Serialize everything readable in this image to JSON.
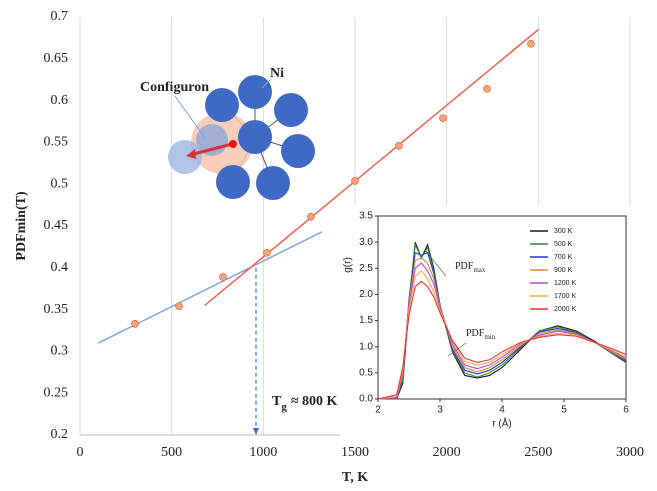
{
  "chart_data": [
    {
      "type": "scatter",
      "x_label": "T, K",
      "y_label": "PDFmin(T)",
      "x": [
        300,
        540,
        780,
        1020,
        1260,
        1500,
        1740,
        1980,
        2220,
        2460
      ],
      "series": [
        {
          "color": "#f4a37a",
          "values": [
            0.333,
            0.354,
            0.389,
            0.418,
            0.461,
            0.504,
            0.546,
            0.579,
            0.614,
            0.668
          ]
        }
      ],
      "lines": [
        {
          "color": "#7ea6d9",
          "x": [
            100,
            1320
          ],
          "values": [
            0.31,
            0.443
          ]
        },
        {
          "color": "#ef5f4b",
          "x": [
            680,
            2500
          ],
          "values": [
            0.355,
            0.685
          ]
        }
      ],
      "vline": {
        "color": "#3a6fd0",
        "x": 960,
        "y": [
          0.4,
          0.2
        ]
      },
      "annotation": {
        "text": "T",
        "sub": "g",
        "rest": "≈ 800 K"
      },
      "xlim": [
        0,
        3000
      ],
      "xticks": [
        0,
        500,
        1000,
        1500,
        2000,
        2500,
        3000
      ],
      "ylim": [
        0.2,
        0.7
      ],
      "yticks": [
        0.2,
        0.25,
        0.3,
        0.35,
        0.4,
        0.45,
        0.5,
        0.55,
        0.6,
        0.65,
        0.7
      ],
      "grid": "x"
    },
    {
      "type": "line",
      "x_label": "r (Å)",
      "y_label": "g(r)",
      "legend": "upper right",
      "x": [
        2.0,
        2.3,
        2.4,
        2.5,
        2.6,
        2.7,
        2.8,
        2.9,
        3.0,
        3.2,
        3.4,
        3.6,
        3.8,
        4.0,
        4.3,
        4.6,
        4.9,
        5.2,
        5.5,
        5.8,
        6.0
      ],
      "series": [
        {
          "name": "300 K",
          "color": "#1a1a1a",
          "values": [
            0,
            0,
            0.3,
            1.8,
            3.0,
            2.7,
            2.95,
            2.5,
            1.8,
            0.9,
            0.45,
            0.4,
            0.45,
            0.6,
            0.95,
            1.3,
            1.4,
            1.3,
            1.1,
            0.85,
            0.7
          ]
        },
        {
          "name": "500 K",
          "color": "#2e8b3e",
          "values": [
            0,
            0,
            0.35,
            1.9,
            2.95,
            2.7,
            2.9,
            2.45,
            1.8,
            0.92,
            0.5,
            0.42,
            0.5,
            0.65,
            0.98,
            1.3,
            1.38,
            1.28,
            1.08,
            0.85,
            0.72
          ]
        },
        {
          "name": "700 K",
          "color": "#2a35c8",
          "values": [
            0,
            0,
            0.4,
            1.9,
            2.8,
            2.75,
            2.8,
            2.4,
            1.8,
            0.95,
            0.55,
            0.48,
            0.55,
            0.7,
            1.0,
            1.28,
            1.35,
            1.27,
            1.08,
            0.87,
            0.74
          ]
        },
        {
          "name": "900 K",
          "color": "#e0893a",
          "values": [
            0,
            0.02,
            0.45,
            1.85,
            2.65,
            2.7,
            2.6,
            2.3,
            1.78,
            1.0,
            0.6,
            0.52,
            0.6,
            0.75,
            1.02,
            1.25,
            1.32,
            1.25,
            1.08,
            0.88,
            0.76
          ]
        },
        {
          "name": "1200 K",
          "color": "#b04fd0",
          "values": [
            0,
            0.03,
            0.5,
            1.8,
            2.5,
            2.6,
            2.45,
            2.2,
            1.75,
            1.05,
            0.65,
            0.58,
            0.65,
            0.8,
            1.05,
            1.22,
            1.3,
            1.24,
            1.08,
            0.9,
            0.78
          ]
        },
        {
          "name": "1700 K",
          "color": "#f4a84a",
          "values": [
            0,
            0.05,
            0.55,
            1.7,
            2.35,
            2.45,
            2.3,
            2.05,
            1.7,
            1.1,
            0.72,
            0.65,
            0.7,
            0.85,
            1.06,
            1.2,
            1.26,
            1.22,
            1.08,
            0.92,
            0.8
          ]
        },
        {
          "name": "2000 K",
          "color": "#e8332a",
          "values": [
            0,
            0.08,
            0.6,
            1.6,
            2.15,
            2.25,
            2.15,
            1.95,
            1.65,
            1.12,
            0.78,
            0.7,
            0.75,
            0.9,
            1.08,
            1.18,
            1.23,
            1.2,
            1.08,
            0.95,
            0.85
          ]
        }
      ],
      "annotations": [
        {
          "text": "PDF",
          "sub": "max"
        },
        {
          "text": "PDF",
          "sub": "min"
        }
      ],
      "xlim": [
        2,
        6
      ],
      "xticks": [
        2,
        3,
        4,
        5,
        6
      ],
      "ylim": [
        0,
        3.5
      ],
      "yticks": [
        {
          "value": 0,
          "label": "0.0"
        },
        0.5,
        {
          "value": 1,
          "label": "1.0"
        },
        1.5,
        {
          "value": 2,
          "label": "2.0"
        },
        2.5,
        {
          "value": 3,
          "label": "3.0"
        },
        3.5
      ]
    }
  ],
  "diagram": {
    "labels": [
      "Configuron",
      "Ni"
    ]
  }
}
